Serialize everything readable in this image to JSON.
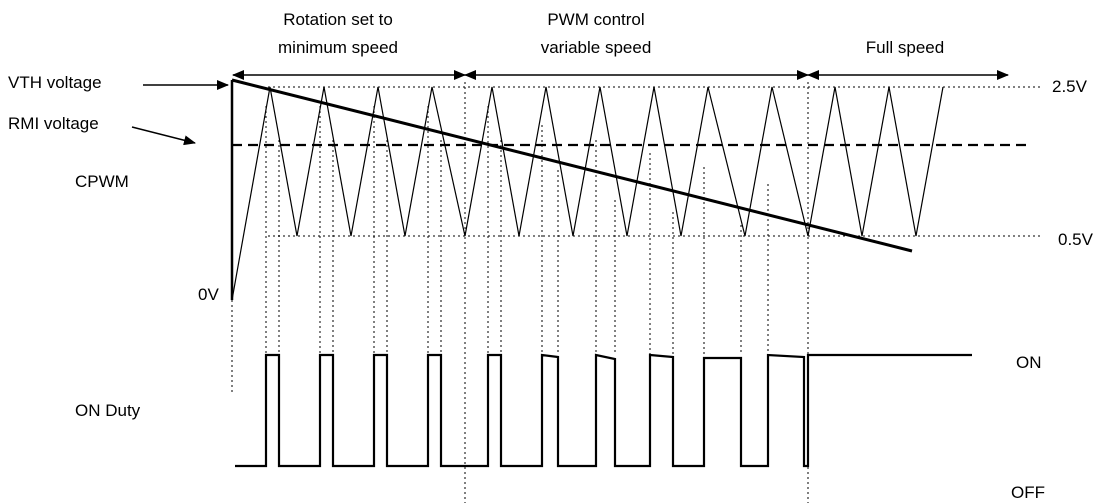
{
  "labels": {
    "section_1_line1": "Rotation set to",
    "section_1_line2": "minimum speed",
    "section_2_line1": "PWM control",
    "section_2_line2": "variable speed",
    "section_3": "Full speed",
    "vth_voltage": "VTH voltage",
    "rmi_voltage": "RMI voltage",
    "cpwm": "CPWM",
    "zero_volt": "0V",
    "on_duty": "ON Duty",
    "high_level": "2.5V",
    "low_level": "0.5V",
    "on": "ON",
    "off": "OFF"
  },
  "colors": {
    "line": "#000000",
    "background": "#ffffff"
  }
}
